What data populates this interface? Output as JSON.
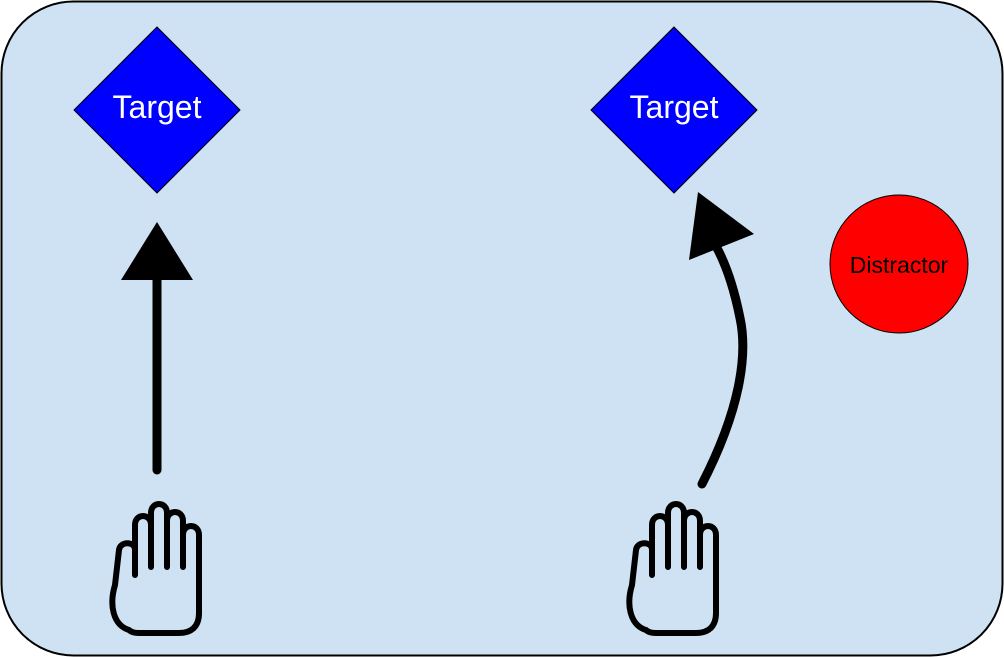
{
  "diagram": {
    "left_panel": {
      "target_label": "Target"
    },
    "right_panel": {
      "target_label": "Target",
      "distractor_label": "Distractor"
    }
  },
  "colors": {
    "panel_fill": "#cfe2f3",
    "panel_stroke": "#000000",
    "target_fill": "#0000ff",
    "target_text": "#ffffff",
    "distractor_fill": "#ff0000",
    "distractor_text": "#000000",
    "arrow": "#000000",
    "hand_stroke": "#000000"
  }
}
